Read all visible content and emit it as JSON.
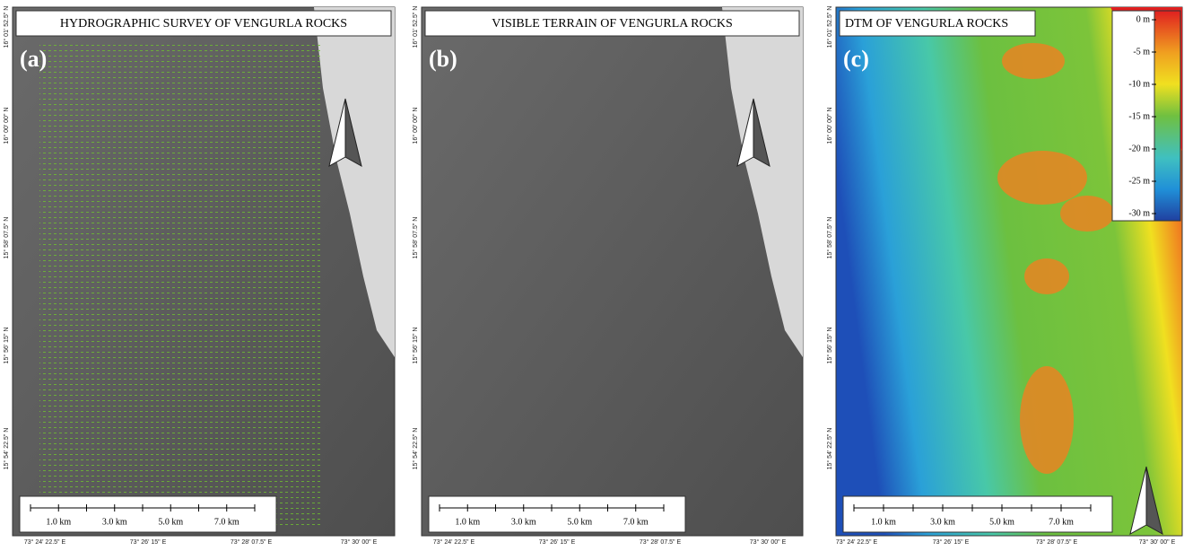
{
  "panels": [
    {
      "label": "(a)",
      "title": "HYDROGRAPHIC SURVEY OF VENGURLA ROCKS"
    },
    {
      "label": "(b)",
      "title": "VISIBLE TERRAIN OF VENGURLA ROCKS"
    },
    {
      "label": "(c)",
      "title": "DTM OF VENGURLA ROCKS"
    }
  ],
  "scale_bar": [
    "1.0 km",
    "3.0 km",
    "5.0 km",
    "7.0 km"
  ],
  "graticule": {
    "lat": [
      "16° 01' 52.5\" N",
      "16° 00' 00\" N",
      "15° 58' 07.5\" N",
      "15° 56' 15\" N",
      "15° 54' 22.5\" N"
    ],
    "lon": [
      "73° 24' 22.5\" E",
      "73° 26' 15\" E",
      "73° 28' 07.5\" E",
      "73° 30' 00\" E"
    ]
  },
  "legend": [
    "0 m",
    "-5 m",
    "-10 m",
    "-15 m",
    "-20 m",
    "-25 m",
    "-30 m"
  ]
}
